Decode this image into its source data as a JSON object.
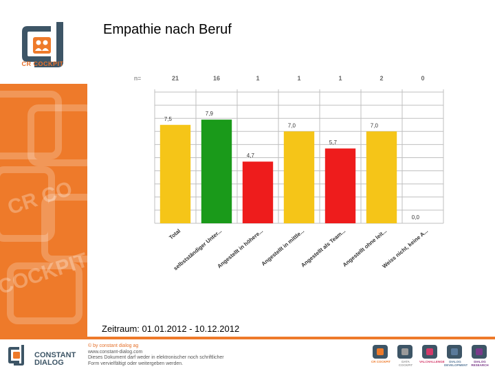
{
  "page": {
    "title": "Empathie nach Beruf",
    "period": "Zeitraum: 01.01.2012 - 10.12.2012"
  },
  "logo": {
    "text": "CR COCKPIT"
  },
  "chart_data": {
    "type": "bar",
    "title": "Empathie nach Beruf",
    "n_label": "n=",
    "categories": [
      "Total",
      "selbstständiger Unter...",
      "Angestellt in höhere...",
      "Angestellt in mittle...",
      "Angestellt als Team...",
      "Angestellt ohne leit...",
      "Weiss nicht, keine A..."
    ],
    "values": [
      7.5,
      7.9,
      4.7,
      7.0,
      5.7,
      7.0,
      0.0
    ],
    "value_labels": [
      "7,5",
      "7,9",
      "4,7",
      "7,0",
      "5,7",
      "7,0",
      "0,0"
    ],
    "n": [
      "21",
      "16",
      "1",
      "1",
      "1",
      "2",
      "0"
    ],
    "colors": [
      "#f5c518",
      "#1a9a1a",
      "#ee1c1c",
      "#f5c518",
      "#ee1c1c",
      "#f5c518",
      "#f5c518"
    ],
    "ylim": [
      0,
      10
    ],
    "grid": true,
    "xlabel": "",
    "ylabel": ""
  },
  "footer": {
    "brand": [
      "CONSTANT",
      "DIALOG"
    ],
    "legal": [
      "© by constant dialog ag",
      "www.constant-dialog.com",
      "Dieses Dokument darf weder in elektronischer noch schriftlicher",
      "Form vervielfältigt oder weitergeben werden."
    ],
    "product_logos": [
      {
        "label": "CR COCKPIT",
        "color": "#ee7a2a"
      },
      {
        "label": "DATA COCKPIT",
        "color": "#9a9a9a"
      },
      {
        "label": "VALCHALLENGE",
        "color": "#d43a6a"
      },
      {
        "label": "DIALOG DEVELOPMENT",
        "color": "#5a7a9a"
      },
      {
        "label": "DIALOG RESEARCH",
        "color": "#7a3a8a"
      }
    ]
  }
}
